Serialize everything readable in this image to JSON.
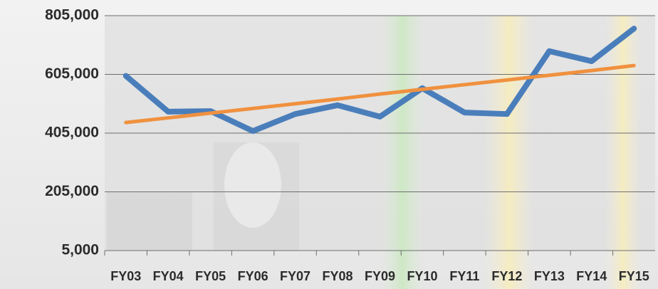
{
  "chart_data": {
    "type": "line",
    "categories": [
      "FY03",
      "FY04",
      "FY05",
      "FY06",
      "FY07",
      "FY08",
      "FY09",
      "FY10",
      "FY11",
      "FY12",
      "FY13",
      "FY14",
      "FY15"
    ],
    "series": [
      {
        "color": "#4a7ebb",
        "values": [
          600000,
          478000,
          480000,
          412000,
          470000,
          500000,
          461000,
          558000,
          475000,
          470000,
          684000,
          650000,
          761000
        ]
      },
      {
        "color": "#f0913f",
        "values": [
          441000,
          457000,
          473000,
          489000,
          505000,
          521000,
          538000,
          554000,
          570000,
          586000,
          602000,
          618000,
          635000
        ]
      }
    ],
    "ylim": [
      5000,
      805000
    ],
    "yticks": [
      {
        "value": 5000,
        "label": "5,000"
      },
      {
        "value": 205000,
        "label": "205,000"
      },
      {
        "value": 405000,
        "label": "405,000"
      },
      {
        "value": 605000,
        "label": "605,000"
      },
      {
        "value": 805000,
        "label": "805,000"
      }
    ],
    "grid": true
  }
}
